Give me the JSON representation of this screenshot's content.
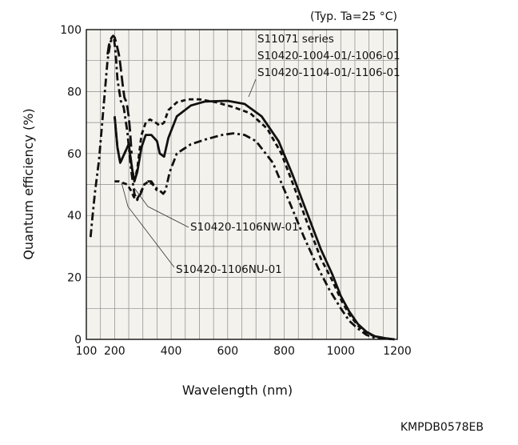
{
  "chart_data": {
    "type": "line",
    "condition": "(Typ. Ta=25 °C)",
    "xlabel": "Wavelength (nm)",
    "ylabel": "Quantum efficiency (%)",
    "xlim": [
      100,
      1200
    ],
    "ylim": [
      0,
      100
    ],
    "xticks": [
      100,
      200,
      400,
      600,
      800,
      1000,
      1200
    ],
    "yticks": [
      0,
      20,
      40,
      60,
      80,
      100
    ],
    "grid": true,
    "code": "KMPDB0578EB",
    "annotations": [
      {
        "text": "S11071 series"
      },
      {
        "text": "S10420-1004-01/-1006-01"
      },
      {
        "text": "S10420-1104-01/-1106-01"
      },
      {
        "text": "S10420-1106NW-01"
      },
      {
        "text": "S10420-1106NU-01"
      }
    ],
    "series": [
      {
        "style": "solid",
        "x": [
          200,
          210,
          220,
          235,
          250,
          262,
          270,
          280,
          295,
          310,
          330,
          350,
          360,
          375,
          390,
          420,
          470,
          520,
          600,
          660,
          720,
          780,
          830,
          880,
          930,
          970,
          1000,
          1030,
          1060,
          1090,
          1120,
          1160,
          1190
        ],
        "y": [
          72,
          62,
          57,
          60,
          63,
          55,
          51,
          54,
          62,
          66,
          66,
          64,
          60,
          59,
          65,
          72,
          75.5,
          76.8,
          77,
          76,
          72,
          64,
          53,
          41,
          29,
          21,
          14,
          9,
          5,
          2.5,
          1,
          0.3,
          0
        ]
      },
      {
        "style": "dashed",
        "x": [
          200,
          210,
          220,
          235,
          250,
          262,
          270,
          280,
          295,
          310,
          325,
          345,
          360,
          375,
          390,
          420,
          460,
          500,
          560,
          620,
          680,
          740,
          790,
          840,
          880,
          930,
          970,
          1000,
          1030,
          1060,
          1090,
          1120,
          1160,
          1190
        ],
        "y": [
          72,
          62,
          57,
          60,
          63,
          55,
          51,
          55,
          66,
          70,
          71,
          70,
          69,
          70,
          74,
          76.5,
          77.5,
          77.5,
          76.5,
          75,
          73,
          68,
          60,
          48,
          38,
          26,
          19,
          13,
          8,
          4.5,
          2,
          1,
          0.3,
          0
        ]
      },
      {
        "style": "dash-dot",
        "x": [
          115,
          120,
          130,
          145,
          160,
          175,
          185,
          192,
          198,
          204,
          210,
          222,
          232,
          245,
          258,
          270,
          280,
          292,
          305,
          318,
          330,
          345,
          360,
          372,
          380,
          395,
          420,
          470,
          520,
          580,
          620,
          660,
          700,
          760,
          820,
          870,
          920,
          960,
          1000,
          1030,
          1060,
          1090,
          1120,
          1160,
          1190
        ],
        "y": [
          33,
          38,
          47,
          58,
          74,
          90,
          96,
          97,
          97,
          92,
          84,
          77,
          75,
          67,
          55,
          47,
          45,
          47,
          50,
          51,
          51,
          49,
          48,
          47,
          48,
          54,
          60,
          63,
          64.5,
          66,
          66.5,
          66,
          64,
          57,
          44,
          33,
          23,
          16,
          10,
          6,
          3.5,
          1.5,
          0.5,
          0.2,
          0
        ]
      },
      {
        "style": "long-dash",
        "x": [
          175,
          180,
          185,
          190,
          195,
          200,
          205,
          210,
          215,
          220,
          225,
          230,
          235,
          240,
          245,
          250,
          255,
          260
        ],
        "y": [
          92,
          95,
          96.5,
          97.5,
          98,
          97.5,
          96,
          94,
          92,
          89,
          85,
          81,
          78,
          77,
          75,
          72,
          67,
          60
        ]
      },
      {
        "style": "dashed",
        "x": [
          200,
          215,
          230,
          245,
          258,
          268,
          278,
          290,
          305,
          320,
          335,
          350
        ],
        "y": [
          51,
          51,
          50.5,
          50,
          48,
          46,
          45,
          47,
          50,
          51,
          50,
          48
        ]
      }
    ]
  }
}
